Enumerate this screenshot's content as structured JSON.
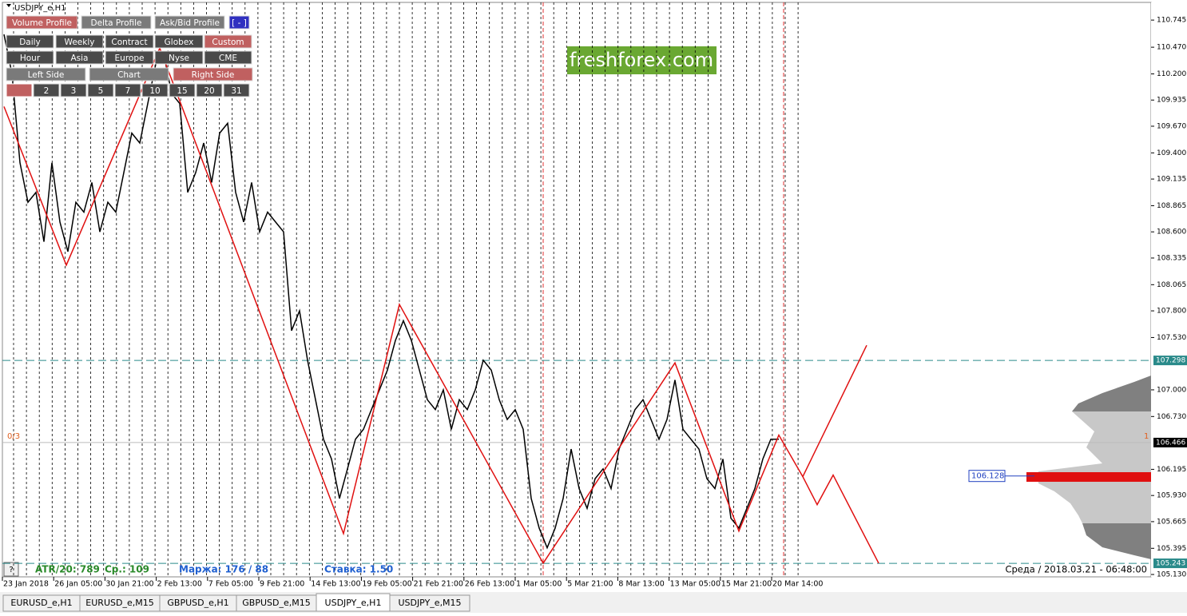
{
  "window": {
    "title": "USDJPY_e,H1",
    "help": "?"
  },
  "toolbar": {
    "rows": [
      [
        "Volume Profile",
        "Delta Profile",
        "Ask/Bid Profile",
        "[ - ]"
      ],
      [
        "Daily",
        "Weekly",
        "Contract",
        "Globex",
        "Custom"
      ],
      [
        "Hour",
        "Asia",
        "Europe",
        "Nyse",
        "CME"
      ],
      [
        "Left Side",
        "Chart",
        "Right Side"
      ],
      [
        "2",
        "3",
        "5",
        "7",
        "10",
        "15",
        "20",
        "31"
      ]
    ]
  },
  "watermark": "freshforex.com",
  "price_axis": {
    "ylim": [
      105.106,
      110.924
    ],
    "ticks": [
      110.745,
      {
        "value": 110.47,
        "label": "110.470"
      },
      {
        "value": 110.2,
        "label": "110.200"
      },
      109.935,
      {
        "value": 109.67,
        "label": "109.670"
      },
      {
        "value": 109.4,
        "label": "109.400"
      },
      109.135,
      108.865,
      {
        "value": 108.6,
        "label": "108.600"
      },
      108.335,
      108.065,
      {
        "value": 107.8,
        "label": "107.800"
      },
      {
        "value": 107.53,
        "label": "107.530"
      },
      {
        "value": 107.0,
        "label": "107.000"
      },
      {
        "value": 106.73,
        "label": "106.730"
      },
      106.195,
      {
        "value": 105.93,
        "label": "105.930"
      },
      105.665,
      105.395,
      {
        "value": 105.13,
        "label": "105.130"
      }
    ]
  },
  "time_axis": {
    "labels": [
      "23 Jan 2018",
      "26 Jan 05:00",
      "30 Jan 21:00",
      "2 Feb 13:00",
      "7 Feb 05:00",
      "9 Feb 21:00",
      "14 Feb 13:00",
      "19 Feb 05:00",
      "21 Feb 21:00",
      "26 Feb 13:00",
      "1 Mar 05:00",
      "5 Mar 21:00",
      "8 Mar 13:00",
      "13 Mar 05:00",
      "15 Mar 21:00",
      "20 Mar 14:00"
    ]
  },
  "chart": {
    "price": [
      110.6,
      110.2,
      109.3,
      108.9,
      109.0,
      108.5,
      109.3,
      108.7,
      108.4,
      108.9,
      108.8,
      109.1,
      108.6,
      108.9,
      108.8,
      109.2,
      109.6,
      109.5,
      109.9,
      110.3,
      110.4,
      110.0,
      109.9,
      109.0,
      109.2,
      109.5,
      109.1,
      109.6,
      109.7,
      109.0,
      108.7,
      109.1,
      108.6,
      108.8,
      108.7,
      108.6,
      107.6,
      107.8,
      107.3,
      106.9,
      106.5,
      106.3,
      105.9,
      106.2,
      106.5,
      106.6,
      106.8,
      107.0,
      107.2,
      107.5,
      107.7,
      107.5,
      107.2,
      106.9,
      106.8,
      107.0,
      106.6,
      106.9,
      106.8,
      107.0,
      107.3,
      107.2,
      106.9,
      106.7,
      106.8,
      106.6,
      105.9,
      105.6,
      105.4,
      105.6,
      105.9,
      106.4,
      106.0,
      105.8,
      106.1,
      106.2,
      106.0,
      106.4,
      106.6,
      106.8,
      106.9,
      106.7,
      106.5,
      106.7,
      107.1,
      106.6,
      106.5,
      106.4,
      106.1,
      106.0,
      106.3,
      105.7,
      105.6,
      105.8,
      106.0,
      106.3,
      106.5,
      106.5
    ],
    "zigzag": [
      109.869,
      108.263,
      110.461,
      105.544,
      107.865,
      105.244,
      107.273,
      105.569,
      106.542,
      106.121,
      105.837,
      106.137,
      105.244
    ],
    "projection": [
      106.121,
      107.451
    ],
    "levels": {
      "upper": 107.298,
      "current": 106.466,
      "lower": 105.243,
      "poc": 106.128
    },
    "wave_label": "0/3",
    "count_label": "1"
  },
  "info": {
    "atr": "ATR/20: 789",
    "avg": "Ср.: 109",
    "margin": "Маржа: 176 / 88",
    "rate": "Ставка: 1.50",
    "time": "Среда  /  2018.03.21  -  06:48:00"
  },
  "tabs": [
    "EURUSD_e,H1",
    "EURUSD_e,M15",
    "GBPUSD_e,H1",
    "GBPUSD_e,M15",
    "USDJPY_e,H1",
    "USDJPY_e,M15"
  ]
}
